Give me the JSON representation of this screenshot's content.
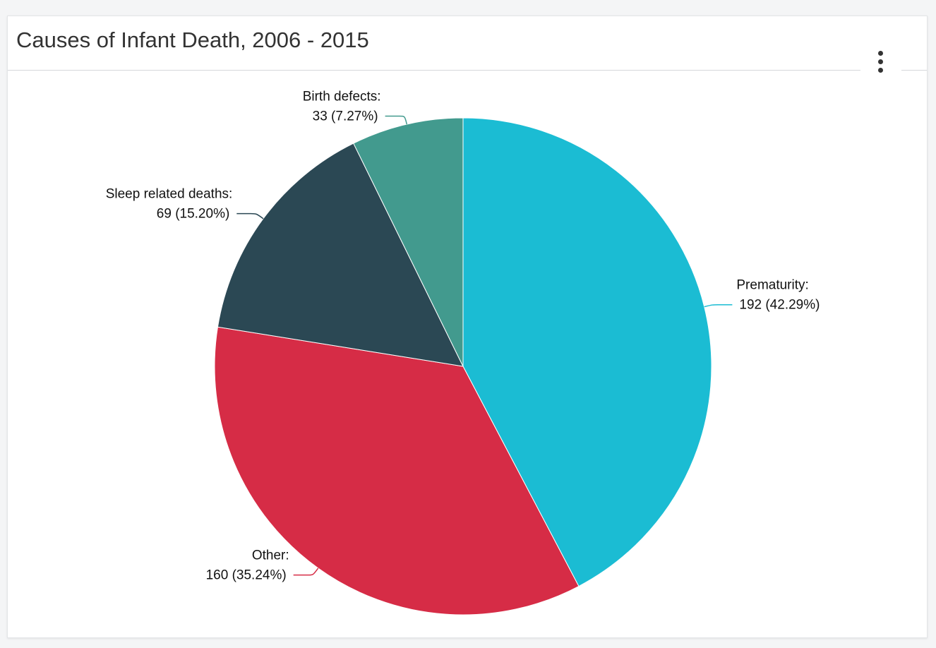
{
  "header": {
    "title": "Causes of Infant Death, 2006 - 2015",
    "menu_icon": "vertical-ellipsis-icon"
  },
  "chart_data": {
    "type": "pie",
    "title": "Causes of Infant Death, 2006 - 2015",
    "slices": [
      {
        "label": "Prematurity",
        "value": 192,
        "percent": "42.29%",
        "value_text": "192 (42.29%)",
        "color": "#1bbcd3"
      },
      {
        "label": "Other",
        "value": 160,
        "percent": "35.24%",
        "value_text": "160 (35.24%)",
        "color": "#d62c46"
      },
      {
        "label": "Sleep related deaths",
        "value": 69,
        "percent": "15.20%",
        "value_text": "69 (15.20%)",
        "color": "#2b4854"
      },
      {
        "label": "Birth defects",
        "value": 33,
        "percent": "7.27%",
        "value_text": "33 (7.27%)",
        "color": "#429a8e"
      }
    ]
  }
}
